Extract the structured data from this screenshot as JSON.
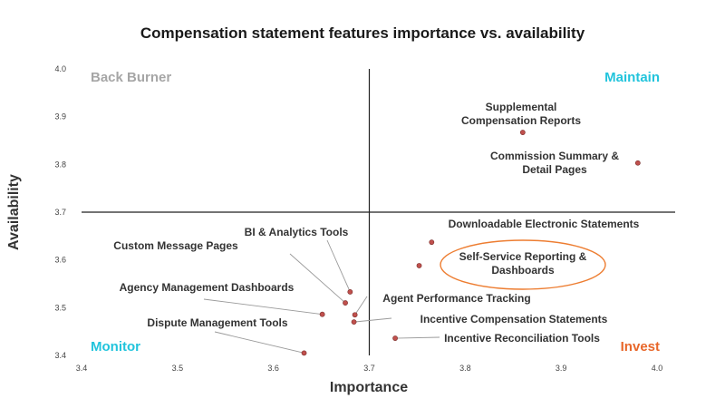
{
  "chart_data": {
    "type": "scatter",
    "title": "Compensation statement features importance vs. availability",
    "xlabel": "Importance",
    "ylabel": "Availability",
    "xlim": [
      3.4,
      4.0
    ],
    "ylim": [
      3.4,
      4.0
    ],
    "x_ticks": [
      "3.4",
      "3.5",
      "3.6",
      "3.7",
      "3.8",
      "3.9",
      "4.0"
    ],
    "y_ticks": [
      "3.4",
      "3.5",
      "3.6",
      "3.7",
      "3.8",
      "3.9",
      "4.0"
    ],
    "grid": false,
    "divider": {
      "x": 3.7,
      "y": 3.7
    },
    "quadrants": [
      {
        "label": "Back Burner",
        "position": "top-left",
        "color": "#a6a6a6"
      },
      {
        "label": "Maintain",
        "position": "top-right",
        "color": "#22c4dc"
      },
      {
        "label": "Monitor",
        "position": "bottom-left",
        "color": "#22c4dc"
      },
      {
        "label": "Invest",
        "position": "bottom-right",
        "color": "#e8672a"
      }
    ],
    "marker_color": "#c0504d",
    "highlight_color": "#ed7d31",
    "points": [
      {
        "label": "Supplemental\nCompensation Reports",
        "x": 3.86,
        "y": 3.867
      },
      {
        "label": "Commission Summary &\nDetail Pages",
        "x": 3.98,
        "y": 3.803
      },
      {
        "label": "Downloadable Electronic Statements",
        "x": 3.765,
        "y": 3.637
      },
      {
        "label": "Self-Service Reporting &\nDashboards",
        "x": 3.752,
        "y": 3.588,
        "highlighted": true
      },
      {
        "label": "BI & Analytics Tools",
        "x": 3.68,
        "y": 3.533
      },
      {
        "label": "Custom Message Pages",
        "x": 3.675,
        "y": 3.51
      },
      {
        "label": "Agent Performance Tracking",
        "x": 3.685,
        "y": 3.485
      },
      {
        "label": "Agency Management Dashboards",
        "x": 3.651,
        "y": 3.486
      },
      {
        "label": "Incentive Compensation Statements",
        "x": 3.684,
        "y": 3.47
      },
      {
        "label": "Incentive Reconciliation Tools",
        "x": 3.727,
        "y": 3.436
      },
      {
        "label": "Dispute Management Tools",
        "x": 3.632,
        "y": 3.405
      }
    ]
  }
}
